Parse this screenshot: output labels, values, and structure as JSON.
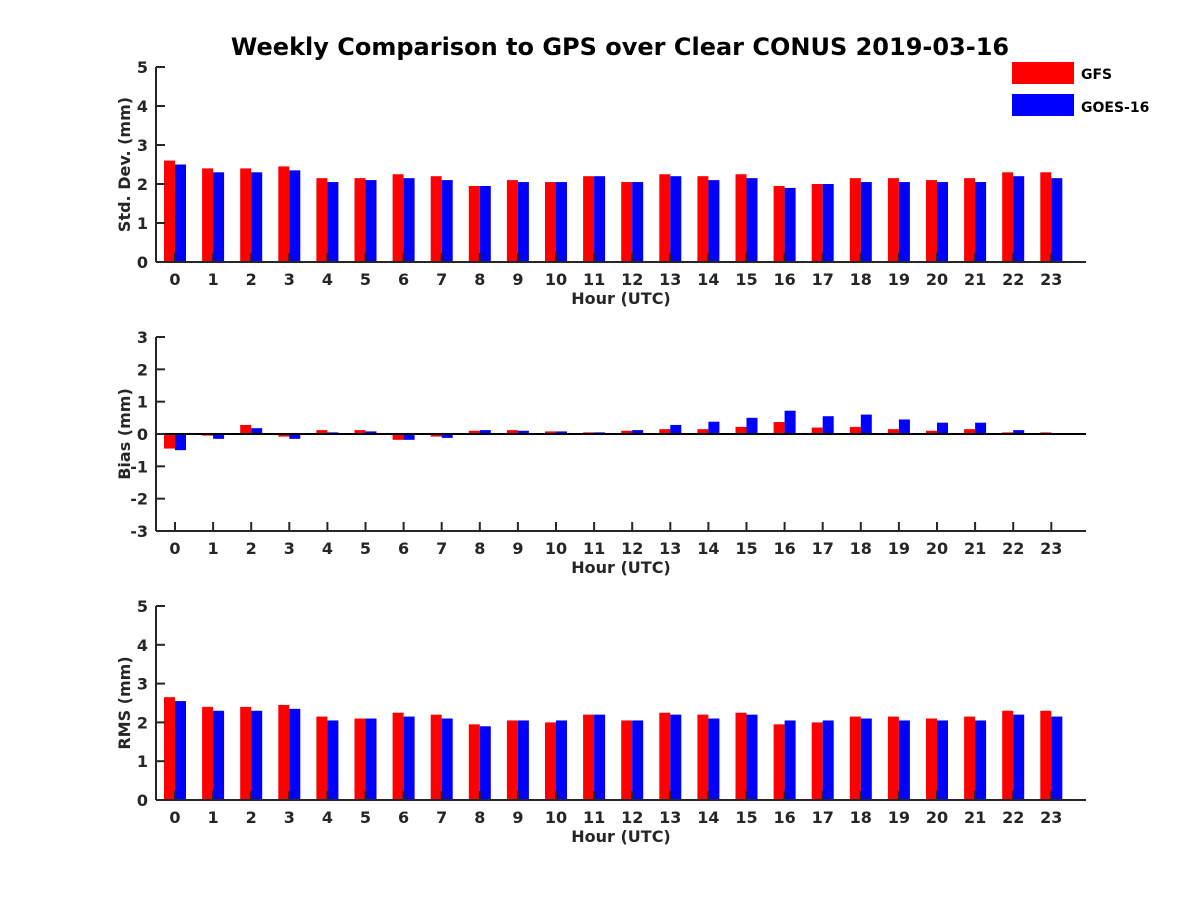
{
  "title": "Weekly Comparison to GPS over Clear CONUS 2019-03-16",
  "colors": {
    "GFS": "#ff0000",
    "GOES-16": "#0000ff"
  },
  "legend": [
    {
      "name": "GFS",
      "color": "#ff0000"
    },
    {
      "name": "GOES-16",
      "color": "#0000ff"
    }
  ],
  "chart_data": [
    {
      "type": "bar",
      "ylabel": "Std. Dev. (mm)",
      "xlabel": "Hour (UTC)",
      "ylim": [
        0,
        5
      ],
      "yticks": [
        0,
        1,
        2,
        3,
        4,
        5
      ],
      "categories": [
        "0",
        "1",
        "2",
        "3",
        "4",
        "5",
        "6",
        "7",
        "8",
        "9",
        "10",
        "11",
        "12",
        "13",
        "14",
        "15",
        "16",
        "17",
        "18",
        "19",
        "20",
        "21",
        "22",
        "23"
      ],
      "series": [
        {
          "name": "GFS",
          "values": [
            2.6,
            2.4,
            2.4,
            2.45,
            2.15,
            2.15,
            2.25,
            2.2,
            1.95,
            2.1,
            2.05,
            2.2,
            2.05,
            2.25,
            2.2,
            2.25,
            1.95,
            2.0,
            2.15,
            2.15,
            2.1,
            2.15,
            2.3,
            2.3
          ]
        },
        {
          "name": "GOES-16",
          "values": [
            2.5,
            2.3,
            2.3,
            2.35,
            2.05,
            2.1,
            2.15,
            2.1,
            1.95,
            2.05,
            2.05,
            2.2,
            2.05,
            2.2,
            2.1,
            2.15,
            1.9,
            2.0,
            2.05,
            2.05,
            2.05,
            2.05,
            2.2,
            2.15
          ]
        }
      ]
    },
    {
      "type": "bar",
      "ylabel": "Bias (mm)",
      "xlabel": "Hour (UTC)",
      "ylim": [
        -3,
        3
      ],
      "yticks": [
        -3,
        -2,
        -1,
        0,
        1,
        2,
        3
      ],
      "categories": [
        "0",
        "1",
        "2",
        "3",
        "4",
        "5",
        "6",
        "7",
        "8",
        "9",
        "10",
        "11",
        "12",
        "13",
        "14",
        "15",
        "16",
        "17",
        "18",
        "19",
        "20",
        "21",
        "22",
        "23"
      ],
      "series": [
        {
          "name": "GFS",
          "values": [
            -0.45,
            -0.05,
            0.28,
            -0.08,
            0.12,
            0.12,
            -0.18,
            -0.08,
            0.1,
            0.12,
            0.08,
            0.05,
            0.1,
            0.15,
            0.15,
            0.22,
            0.37,
            0.2,
            0.22,
            0.15,
            0.1,
            0.15,
            0.05,
            0.05
          ]
        },
        {
          "name": "GOES-16",
          "values": [
            -0.5,
            -0.15,
            0.18,
            -0.15,
            0.05,
            0.08,
            -0.18,
            -0.12,
            0.12,
            0.1,
            0.08,
            0.05,
            0.12,
            0.28,
            0.38,
            0.5,
            0.72,
            0.55,
            0.6,
            0.45,
            0.35,
            0.35,
            0.12,
            0.02
          ]
        }
      ]
    },
    {
      "type": "bar",
      "ylabel": "RMS (mm)",
      "xlabel": "Hour (UTC)",
      "ylim": [
        0,
        5
      ],
      "yticks": [
        0,
        1,
        2,
        3,
        4,
        5
      ],
      "categories": [
        "0",
        "1",
        "2",
        "3",
        "4",
        "5",
        "6",
        "7",
        "8",
        "9",
        "10",
        "11",
        "12",
        "13",
        "14",
        "15",
        "16",
        "17",
        "18",
        "19",
        "20",
        "21",
        "22",
        "23"
      ],
      "series": [
        {
          "name": "GFS",
          "values": [
            2.65,
            2.4,
            2.4,
            2.45,
            2.15,
            2.1,
            2.25,
            2.2,
            1.95,
            2.05,
            2.0,
            2.2,
            2.05,
            2.25,
            2.2,
            2.25,
            1.95,
            2.0,
            2.15,
            2.15,
            2.1,
            2.15,
            2.3,
            2.3
          ]
        },
        {
          "name": "GOES-16",
          "values": [
            2.55,
            2.3,
            2.3,
            2.35,
            2.05,
            2.1,
            2.15,
            2.1,
            1.9,
            2.05,
            2.05,
            2.2,
            2.05,
            2.2,
            2.1,
            2.2,
            2.05,
            2.05,
            2.1,
            2.05,
            2.05,
            2.05,
            2.2,
            2.15
          ]
        }
      ]
    }
  ]
}
